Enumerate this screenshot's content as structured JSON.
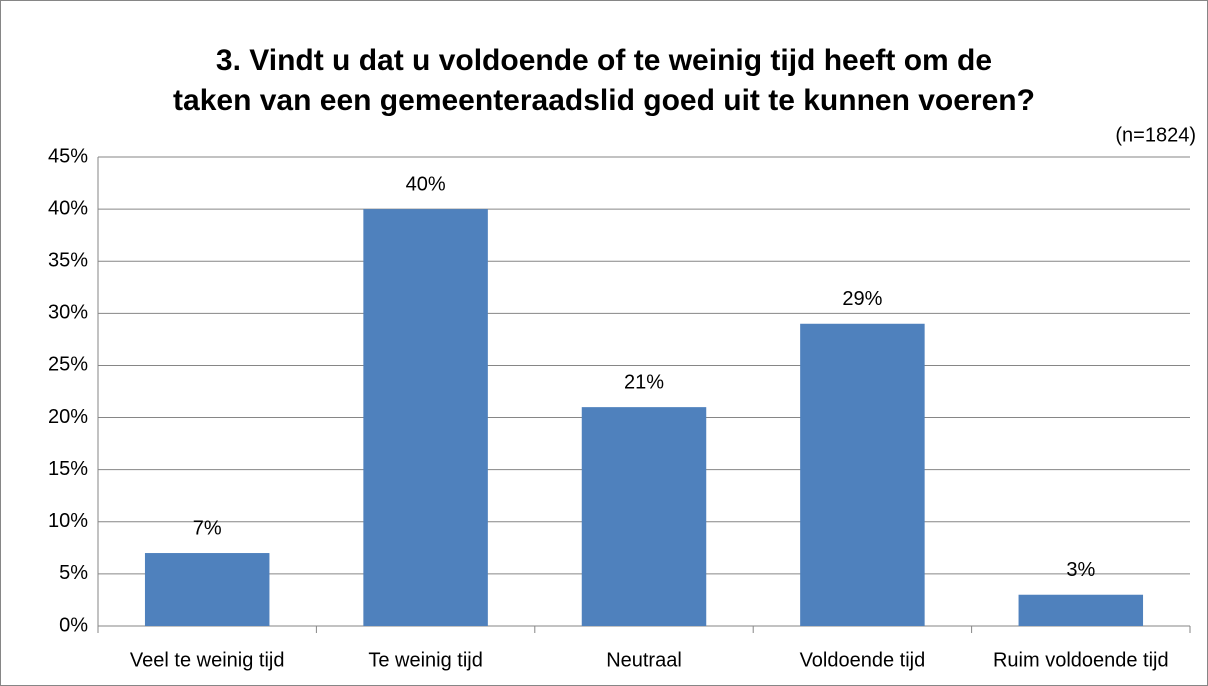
{
  "chart_data": {
    "type": "bar",
    "title": [
      "3. Vindt u dat u voldoende of te weinig tijd heeft om de",
      "taken van een gemeenteraadslid goed uit te kunnen voeren?"
    ],
    "annotation": "(n=1824)",
    "categories": [
      "Veel te weinig tijd",
      "Te weinig tijd",
      "Neutraal",
      "Voldoende tijd",
      "Ruim voldoende tijd"
    ],
    "values": [
      7,
      40,
      21,
      29,
      3
    ],
    "value_labels": [
      "7%",
      "40%",
      "21%",
      "29%",
      "3%"
    ],
    "color": "#4f81bd",
    "ylim": [
      0,
      45
    ],
    "yticks": [
      {
        "value": 0,
        "label": "0%"
      },
      {
        "value": 5,
        "label": "5%"
      },
      {
        "value": 10,
        "label": "10%"
      },
      {
        "value": 15,
        "label": "15%"
      },
      {
        "value": 20,
        "label": "20%"
      },
      {
        "value": 25,
        "label": "25%"
      },
      {
        "value": 30,
        "label": "30%"
      },
      {
        "value": 35,
        "label": "35%"
      },
      {
        "value": 40,
        "label": "40%"
      },
      {
        "value": 45,
        "label": "45%"
      }
    ],
    "grid": true
  }
}
